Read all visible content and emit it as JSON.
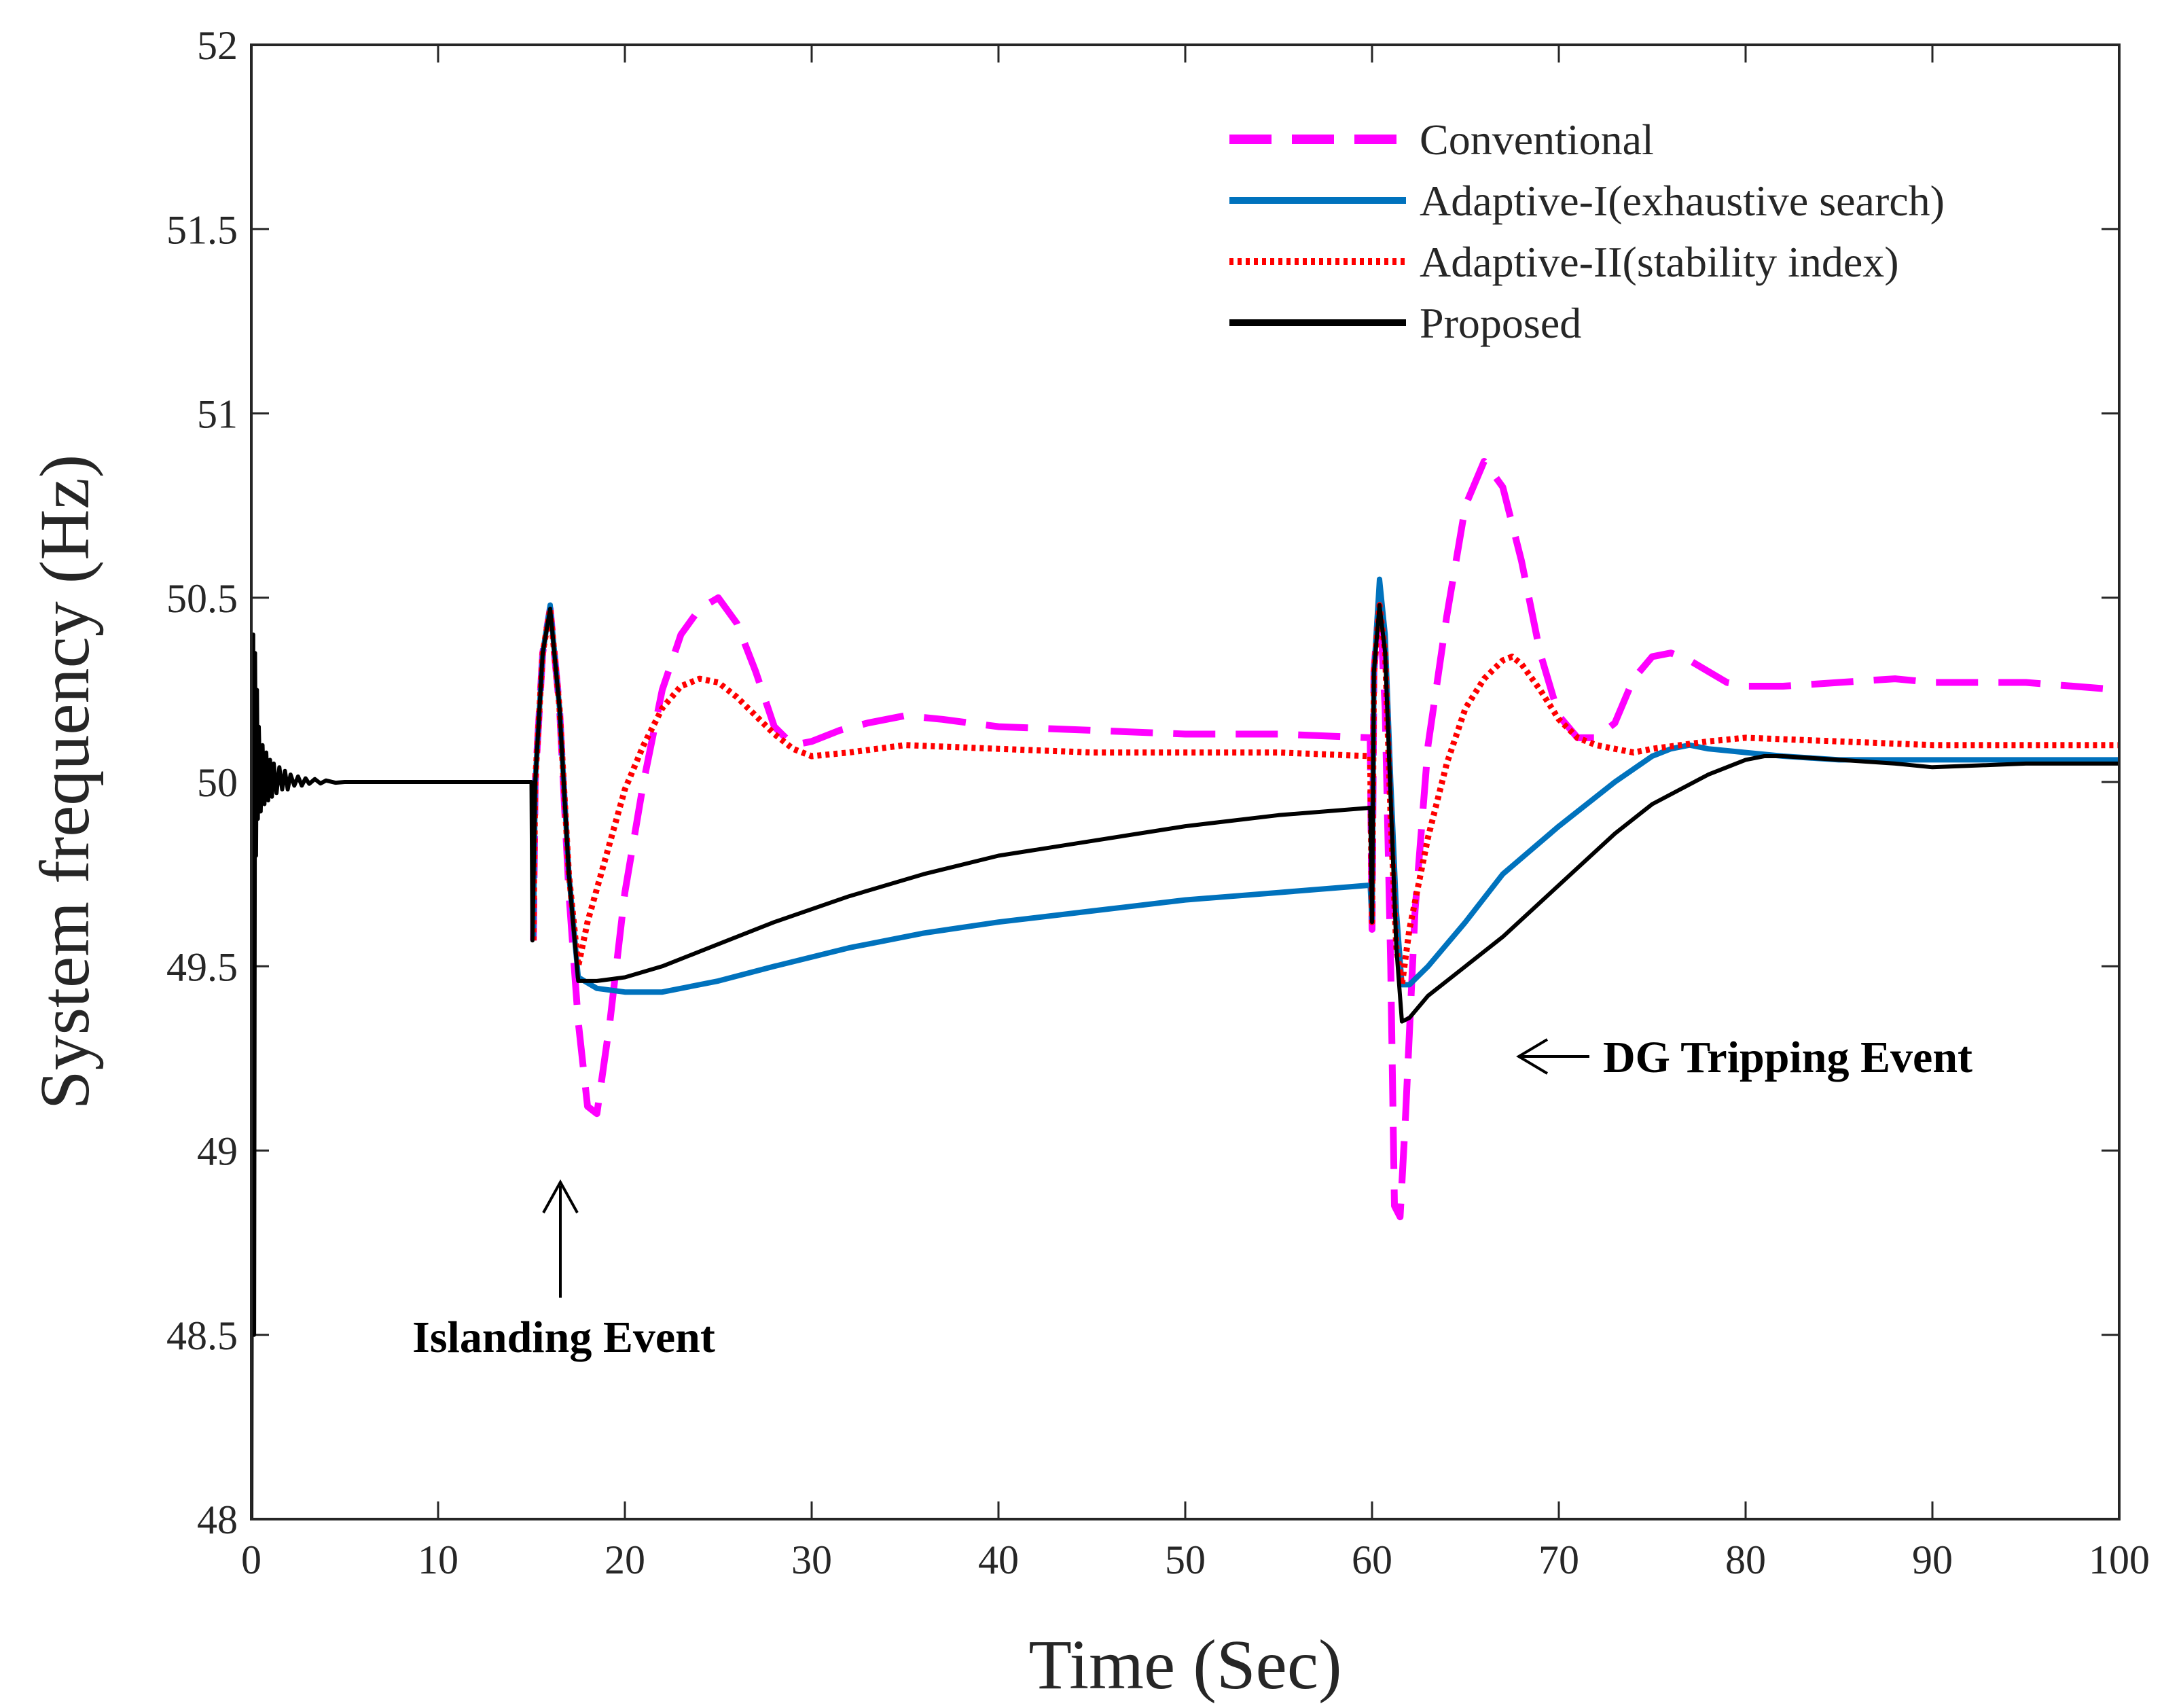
{
  "chart_data": {
    "type": "line",
    "title": "",
    "xlabel": "Time (Sec)",
    "ylabel": "System frequency (Hz)",
    "xlim": [
      0,
      100
    ],
    "ylim": [
      48,
      52
    ],
    "xticks": [
      "0",
      "10",
      "20",
      "30",
      "40",
      "50",
      "60",
      "70",
      "80",
      "90",
      "100"
    ],
    "yticks": [
      "48",
      "48.5",
      "49",
      "49.5",
      "50",
      "50.5",
      "51",
      "51.5",
      "52"
    ],
    "grid": false,
    "legend_position": "top-right",
    "annotations": [
      {
        "text": "Islanding Event",
        "arrow": "up",
        "x": 16.5,
        "y": 48.9
      },
      {
        "text": "DG Tripping Event",
        "arrow": "left",
        "x": 68.5,
        "y": 49.25
      }
    ],
    "series": [
      {
        "name": "Conventional",
        "color": "#ff00ff",
        "style": "dashed",
        "x": [
          15.1,
          15.2,
          15.6,
          16.0,
          16.5,
          17.0,
          17.5,
          18.0,
          18.5,
          19.2,
          20.0,
          21.0,
          22.0,
          23.0,
          24.0,
          25.0,
          26.0,
          27.0,
          28.0,
          29.0,
          30.0,
          31.5,
          33.0,
          35.0,
          37.0,
          40.0,
          45.0,
          50.0,
          55.0,
          59.9,
          60.0,
          60.1,
          60.4,
          60.7,
          61.0,
          61.2,
          61.5,
          61.8,
          62.3,
          63.0,
          64.0,
          65.0,
          66.0,
          67.0,
          68.0,
          69.0,
          70.0,
          71.0,
          72.0,
          73.0,
          74.0,
          75.0,
          76.0,
          77.0,
          78.0,
          79.0,
          80.0,
          82.0,
          85.0,
          88.0,
          90.0,
          95.0,
          100.0
        ],
        "y": [
          49.57,
          50.0,
          50.35,
          50.47,
          50.2,
          49.7,
          49.35,
          49.12,
          49.1,
          49.35,
          49.7,
          50.0,
          50.25,
          50.4,
          50.47,
          50.5,
          50.43,
          50.3,
          50.15,
          50.1,
          50.11,
          50.14,
          50.16,
          50.18,
          50.17,
          50.15,
          50.14,
          50.13,
          50.13,
          50.12,
          49.6,
          50.3,
          50.5,
          50.2,
          49.5,
          48.85,
          48.82,
          49.1,
          49.65,
          50.1,
          50.45,
          50.75,
          50.87,
          50.8,
          50.6,
          50.35,
          50.18,
          50.12,
          50.12,
          50.16,
          50.28,
          50.34,
          50.35,
          50.33,
          50.3,
          50.27,
          50.26,
          50.26,
          50.27,
          50.28,
          50.27,
          50.27,
          50.25
        ]
      },
      {
        "name": "Adaptive-I(exhaustive search)",
        "color": "#0072bd",
        "style": "solid",
        "x": [
          15.1,
          15.2,
          15.6,
          16.0,
          16.5,
          17.0,
          17.5,
          18.5,
          20.0,
          22.0,
          25.0,
          28.0,
          32.0,
          36.0,
          40.0,
          45.0,
          50.0,
          55.0,
          59.9,
          60.0,
          60.1,
          60.4,
          60.7,
          61.0,
          61.3,
          61.6,
          62.0,
          63.0,
          65.0,
          67.0,
          70.0,
          73.0,
          75.0,
          76.0,
          77.0,
          78.0,
          80.0,
          82.0,
          85.0,
          90.0,
          95.0,
          100.0
        ],
        "y": [
          49.57,
          50.0,
          50.35,
          50.48,
          50.2,
          49.75,
          49.47,
          49.44,
          49.43,
          49.43,
          49.46,
          49.5,
          49.55,
          49.59,
          49.62,
          49.65,
          49.68,
          49.7,
          49.72,
          49.62,
          50.3,
          50.55,
          50.4,
          50.0,
          49.65,
          49.45,
          49.45,
          49.5,
          49.62,
          49.75,
          49.88,
          50.0,
          50.07,
          50.09,
          50.1,
          50.09,
          50.08,
          50.07,
          50.06,
          50.06,
          50.06,
          50.06
        ]
      },
      {
        "name": "Adaptive-II(stability index)",
        "color": "#ff0000",
        "style": "dotted",
        "x": [
          15.1,
          15.2,
          15.6,
          16.0,
          16.5,
          17.0,
          17.5,
          18.0,
          19.0,
          20.0,
          21.0,
          22.0,
          23.0,
          24.0,
          25.0,
          26.0,
          27.0,
          28.0,
          29.0,
          30.0,
          32.0,
          35.0,
          40.0,
          45.0,
          50.0,
          55.0,
          59.9,
          60.0,
          60.1,
          60.4,
          60.7,
          61.0,
          61.3,
          61.6,
          62.0,
          63.0,
          64.0,
          65.0,
          66.0,
          67.0,
          67.5,
          68.0,
          69.0,
          70.0,
          71.0,
          72.0,
          73.0,
          74.0,
          75.0,
          78.0,
          80.0,
          85.0,
          90.0,
          95.0,
          100.0
        ],
        "y": [
          49.57,
          50.0,
          50.35,
          50.47,
          50.2,
          49.75,
          49.5,
          49.62,
          49.8,
          49.98,
          50.1,
          50.2,
          50.26,
          50.28,
          50.27,
          50.23,
          50.18,
          50.13,
          50.09,
          50.07,
          50.08,
          50.1,
          50.09,
          50.08,
          50.08,
          50.08,
          50.07,
          49.62,
          50.3,
          50.48,
          50.35,
          49.9,
          49.55,
          49.45,
          49.6,
          49.85,
          50.05,
          50.2,
          50.28,
          50.33,
          50.34,
          50.32,
          50.25,
          50.17,
          50.12,
          50.1,
          50.09,
          50.08,
          50.09,
          50.11,
          50.12,
          50.11,
          50.1,
          50.1,
          50.1
        ]
      },
      {
        "name": "Proposed",
        "color": "#000000",
        "style": "solid",
        "x": [
          0.0,
          0.05,
          0.1,
          0.15,
          0.2,
          0.25,
          0.3,
          0.35,
          0.4,
          0.5,
          0.6,
          0.7,
          0.8,
          0.9,
          1.0,
          1.1,
          1.2,
          1.35,
          1.5,
          1.65,
          1.8,
          1.95,
          2.1,
          2.3,
          2.5,
          2.7,
          2.9,
          3.1,
          3.4,
          3.7,
          4.0,
          4.5,
          5.0,
          6.0,
          8.0,
          10.0,
          12.0,
          14.0,
          15.0,
          15.05,
          15.2,
          15.6,
          16.0,
          16.5,
          17.0,
          17.5,
          18.5,
          20.0,
          22.0,
          25.0,
          28.0,
          32.0,
          36.0,
          40.0,
          45.0,
          50.0,
          55.0,
          59.9,
          60.0,
          60.1,
          60.4,
          60.7,
          61.0,
          61.3,
          61.6,
          62.0,
          63.0,
          65.0,
          67.0,
          70.0,
          73.0,
          75.0,
          78.0,
          80.0,
          81.0,
          82.0,
          85.0,
          88.0,
          90.0,
          95.0,
          100.0
        ],
        "y": [
          48.0,
          49.6,
          50.4,
          48.5,
          50.35,
          49.8,
          50.25,
          49.9,
          50.15,
          49.92,
          50.1,
          49.94,
          50.08,
          49.95,
          50.06,
          49.96,
          50.05,
          49.97,
          50.04,
          49.98,
          50.03,
          49.98,
          50.02,
          49.99,
          50.015,
          49.99,
          50.01,
          49.995,
          50.008,
          49.996,
          50.004,
          49.998,
          50.0,
          50.0,
          50.0,
          50.0,
          50.0,
          50.0,
          50.0,
          49.57,
          50.0,
          50.35,
          50.47,
          50.2,
          49.75,
          49.46,
          49.46,
          49.47,
          49.5,
          49.56,
          49.62,
          49.69,
          49.75,
          49.8,
          49.84,
          49.88,
          49.91,
          49.93,
          49.62,
          50.3,
          50.48,
          50.35,
          49.95,
          49.55,
          49.35,
          49.36,
          49.42,
          49.5,
          49.58,
          49.72,
          49.86,
          49.94,
          50.02,
          50.06,
          50.07,
          50.07,
          50.06,
          50.05,
          50.04,
          50.05,
          50.05
        ]
      }
    ]
  }
}
